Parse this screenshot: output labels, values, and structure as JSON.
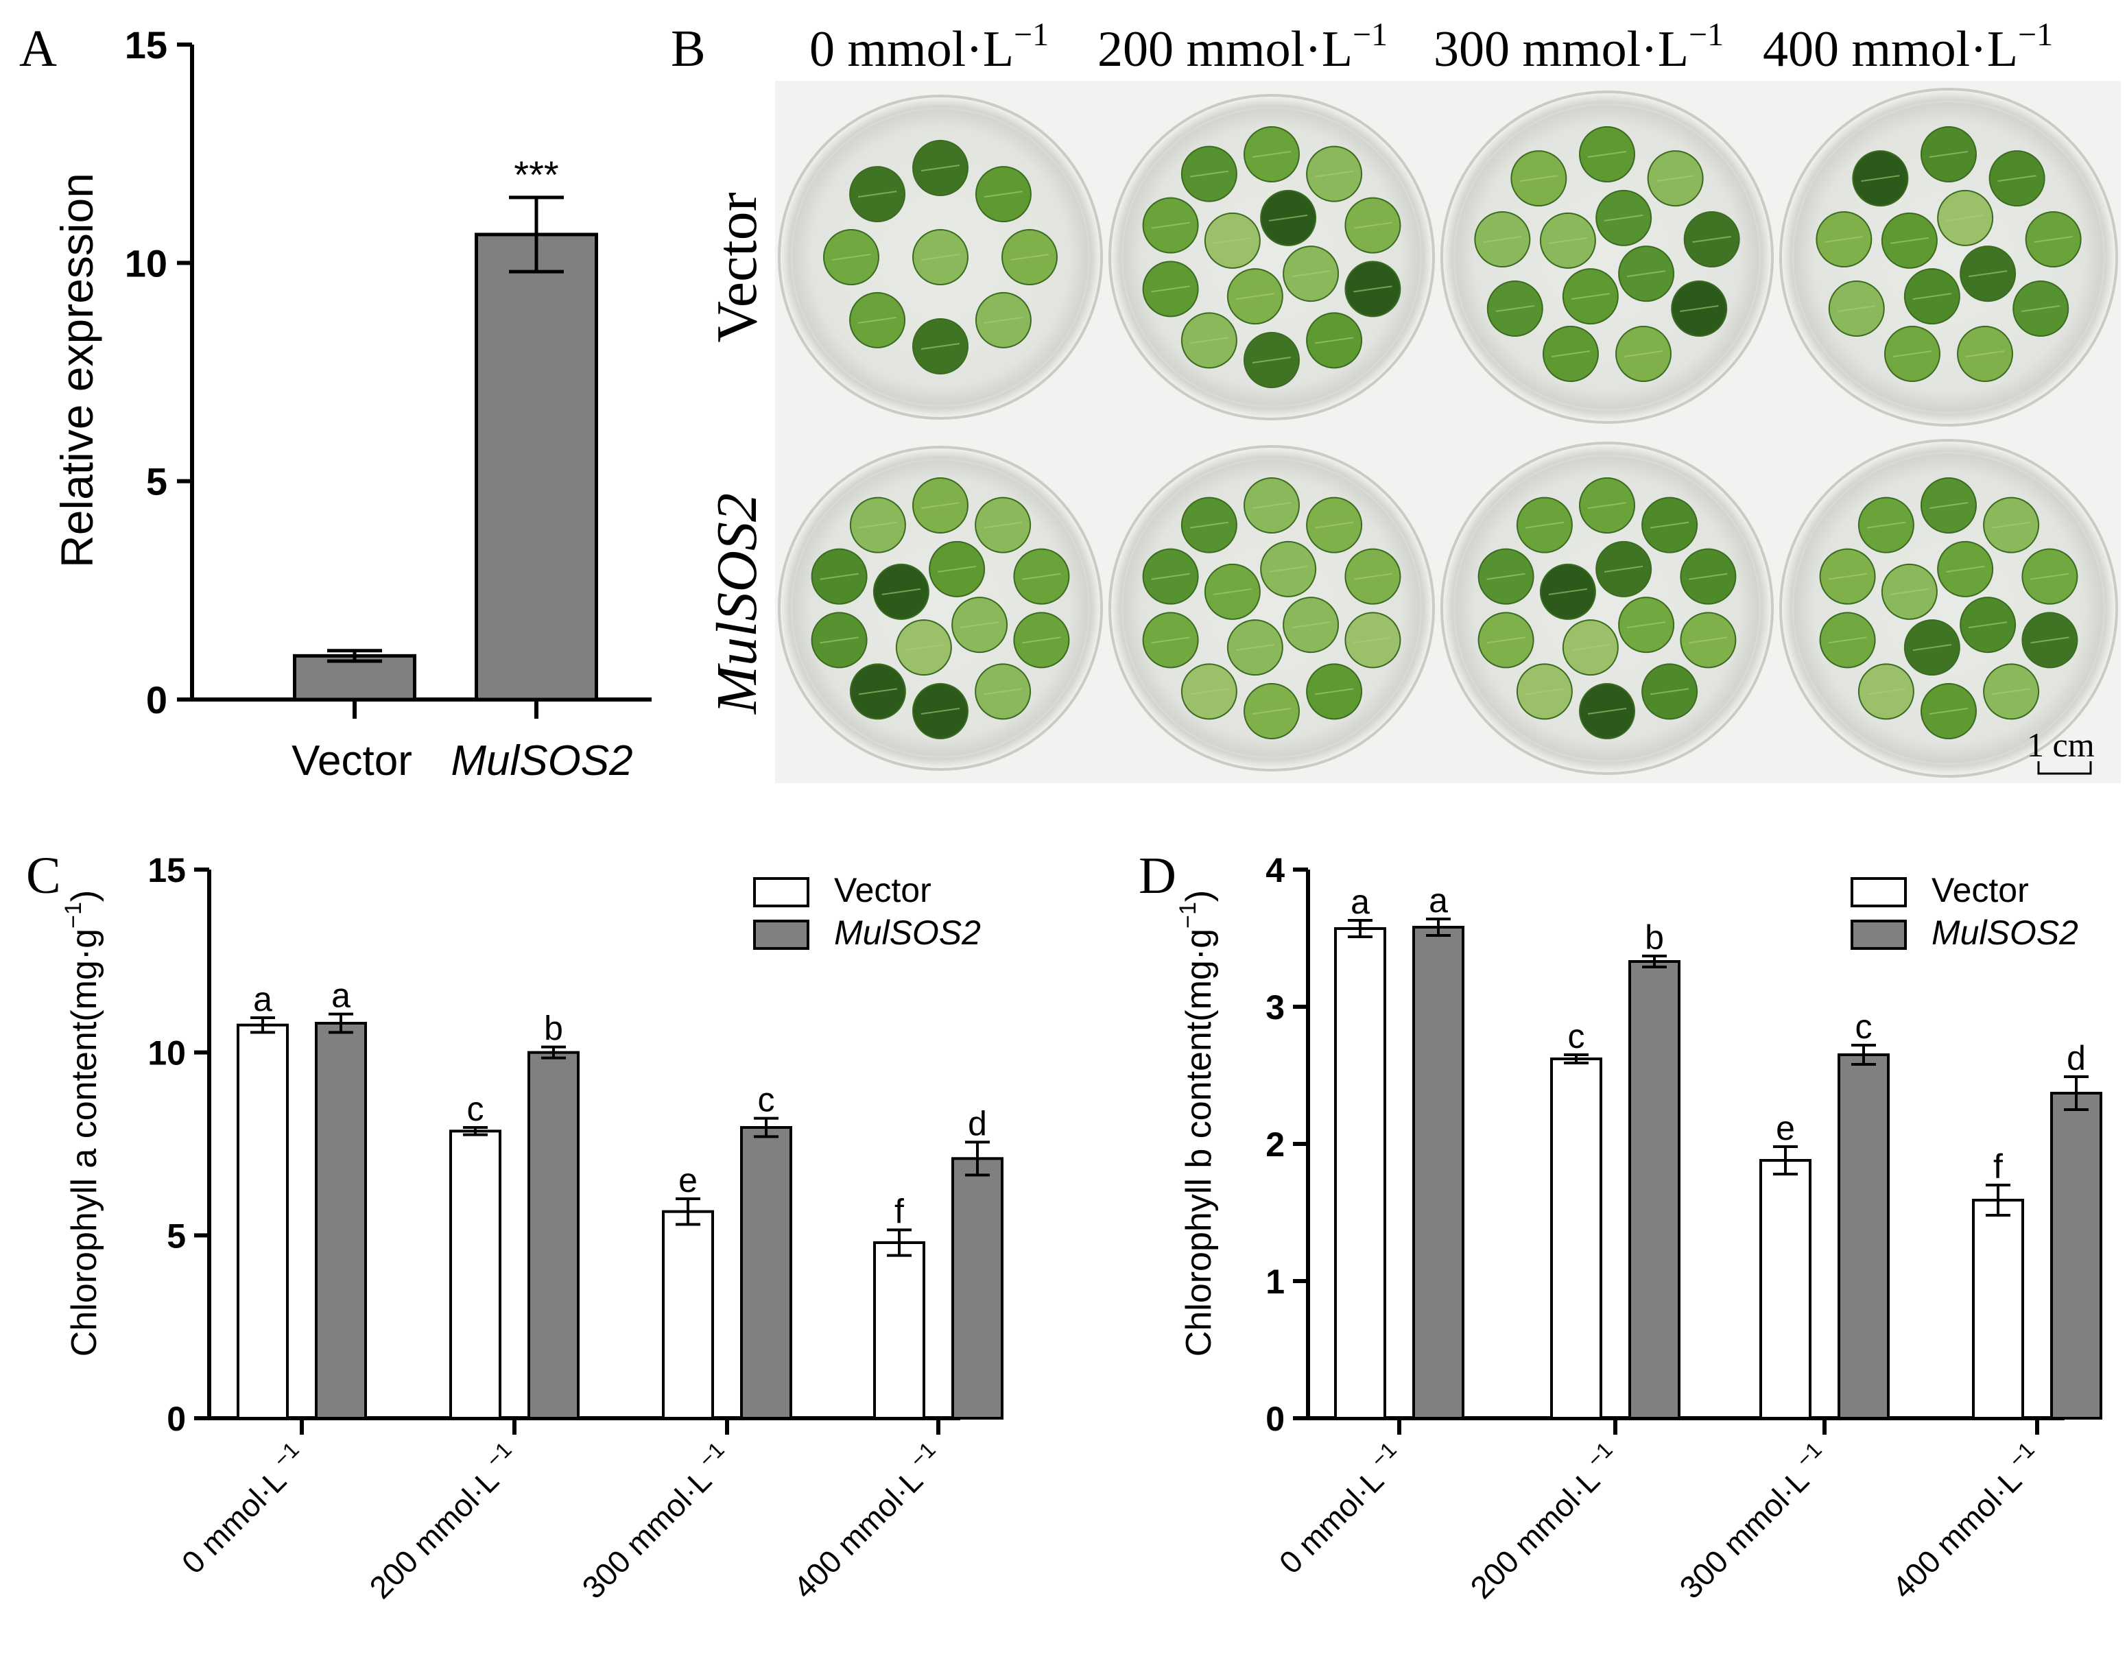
{
  "panels": {
    "A": {
      "label": "A"
    },
    "B": {
      "label": "B"
    },
    "C": {
      "label": "C"
    },
    "D": {
      "label": "D"
    }
  },
  "colors": {
    "vector_fill": "#ffffff",
    "mulsos2_fill": "#808080",
    "axis": "#000000"
  },
  "panel_b": {
    "concentrations": [
      "0 mmol·L",
      "200 mmol·L",
      "300 mmol·L",
      "400 mmol·L"
    ],
    "concentration_superscript": "−1",
    "row_labels": [
      "Vector",
      "MulSOS2"
    ],
    "scale_bar": "1 cm",
    "dishes": [
      {
        "row": 0,
        "col": 0,
        "leaves": 9
      },
      {
        "row": 0,
        "col": 1,
        "leaves": 14
      },
      {
        "row": 0,
        "col": 2,
        "leaves": 13
      },
      {
        "row": 0,
        "col": 3,
        "leaves": 13
      },
      {
        "row": 1,
        "col": 0,
        "leaves": 14
      },
      {
        "row": 1,
        "col": 1,
        "leaves": 14
      },
      {
        "row": 1,
        "col": 2,
        "leaves": 14
      },
      {
        "row": 1,
        "col": 3,
        "leaves": 14
      }
    ]
  },
  "chart_data": [
    {
      "panel": "A",
      "type": "bar",
      "categories": [
        "Vector",
        "MulSOS2"
      ],
      "category_italic": [
        false,
        true
      ],
      "values": [
        1.0,
        10.65
      ],
      "errors": [
        0.12,
        0.85
      ],
      "significance": [
        "",
        "***"
      ],
      "ylabel": "Relative expression",
      "ylim": [
        0,
        15
      ],
      "yticks": [
        0,
        5,
        10,
        15
      ],
      "fill": "#808080",
      "legend": null,
      "grid": false
    },
    {
      "panel": "C",
      "type": "bar",
      "categories": [
        "0 mmol·L",
        "200 mmol·L",
        "300 mmol·L",
        "400 mmol·L"
      ],
      "category_superscript": "−1",
      "series": [
        {
          "name": "Vector",
          "italic": false,
          "fill": "#ffffff",
          "values": [
            10.75,
            7.85,
            5.65,
            4.8
          ],
          "errors": [
            0.2,
            0.1,
            0.35,
            0.35
          ],
          "letters": [
            "a",
            "c",
            "e",
            "f"
          ]
        },
        {
          "name": "MulSOS2",
          "italic": true,
          "fill": "#808080",
          "values": [
            10.8,
            10.0,
            7.95,
            7.1
          ],
          "errors": [
            0.25,
            0.15,
            0.25,
            0.45
          ],
          "letters": [
            "a",
            "b",
            "c",
            "d"
          ]
        }
      ],
      "ylabel": "Chlorophyll a content(mg·g",
      "ylabel_superscript": "−1",
      "ylabel_end": ")",
      "ylim": [
        0,
        15
      ],
      "yticks": [
        0,
        5,
        10,
        15
      ],
      "legend": "top-right",
      "grid": false
    },
    {
      "panel": "D",
      "type": "bar",
      "categories": [
        "0 mmol·L",
        "200 mmol·L",
        "300 mmol·L",
        "400 mmol·L"
      ],
      "category_superscript": "−1",
      "series": [
        {
          "name": "Vector",
          "italic": false,
          "fill": "#ffffff",
          "values": [
            3.57,
            2.62,
            1.88,
            1.59
          ],
          "errors": [
            0.06,
            0.03,
            0.1,
            0.11
          ],
          "letters": [
            "a",
            "c",
            "e",
            "f"
          ]
        },
        {
          "name": "MulSOS2",
          "italic": true,
          "fill": "#808080",
          "values": [
            3.58,
            3.33,
            2.65,
            2.37
          ],
          "errors": [
            0.06,
            0.04,
            0.07,
            0.12
          ],
          "letters": [
            "a",
            "b",
            "c",
            "d"
          ]
        }
      ],
      "ylabel": "Chlorophyll b content(mg·g",
      "ylabel_superscript": "−1",
      "ylabel_end": ")",
      "ylim": [
        0,
        4
      ],
      "yticks": [
        0,
        1,
        2,
        3,
        4
      ],
      "legend": "top-right",
      "grid": false
    }
  ]
}
